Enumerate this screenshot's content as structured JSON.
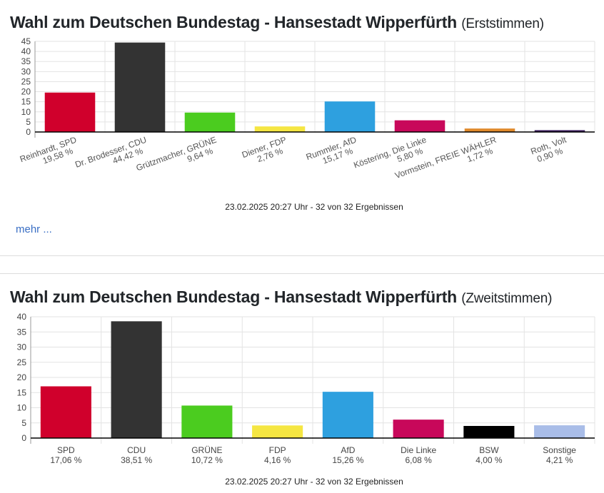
{
  "link_more": "mehr ...",
  "chart_data": [
    {
      "type": "bar",
      "title": "Wahl zum Deutschen Bundestag - Hansestadt Wipperfürth",
      "subtitle": "(Erststimmen)",
      "categories": [
        "Reinhardt, SPD",
        "Dr. Brodesser, CDU",
        "Grützmacher, GRÜNE",
        "Diener, FDP",
        "Rummler, AfD",
        "Köstering, Die Linke",
        "Vormstein, FREIE WÄHLER",
        "Roth, Volt"
      ],
      "value_labels": [
        "19,58 %",
        "44,42 %",
        "9,64 %",
        "2,76 %",
        "15,17 %",
        "5,80 %",
        "1,72 %",
        "0,90 %"
      ],
      "values": [
        19.58,
        44.42,
        9.64,
        2.76,
        15.17,
        5.8,
        1.72,
        0.9
      ],
      "colors": [
        "#d0002c",
        "#333333",
        "#4bcc1f",
        "#f5e642",
        "#2ea0df",
        "#c8085a",
        "#e08a2c",
        "#3a1c5c"
      ],
      "ylim": [
        0,
        45
      ],
      "yticks": [
        0,
        5,
        10,
        15,
        20,
        25,
        30,
        35,
        40,
        45
      ],
      "grid": true,
      "footer": "23.02.2025 20:27 Uhr - 32 von 32 Ergebnissen"
    },
    {
      "type": "bar",
      "title": "Wahl zum Deutschen Bundestag - Hansestadt Wipperfürth",
      "subtitle": "(Zweitstimmen)",
      "categories": [
        "SPD",
        "CDU",
        "GRÜNE",
        "FDP",
        "AfD",
        "Die Linke",
        "BSW",
        "Sonstige"
      ],
      "value_labels": [
        "17,06 %",
        "38,51 %",
        "10,72 %",
        "4,16 %",
        "15,26 %",
        "6,08 %",
        "4,00 %",
        "4,21 %"
      ],
      "values": [
        17.06,
        38.51,
        10.72,
        4.16,
        15.26,
        6.08,
        4.0,
        4.21
      ],
      "colors": [
        "#d0002c",
        "#333333",
        "#4bcc1f",
        "#f5e642",
        "#2ea0df",
        "#c8085a",
        "#000000",
        "#a9bde8"
      ],
      "ylim": [
        0,
        40
      ],
      "yticks": [
        0,
        5,
        10,
        15,
        20,
        25,
        30,
        35,
        40
      ],
      "grid": true,
      "footer": "23.02.2025 20:27 Uhr - 32 von 32 Ergebnissen"
    }
  ]
}
